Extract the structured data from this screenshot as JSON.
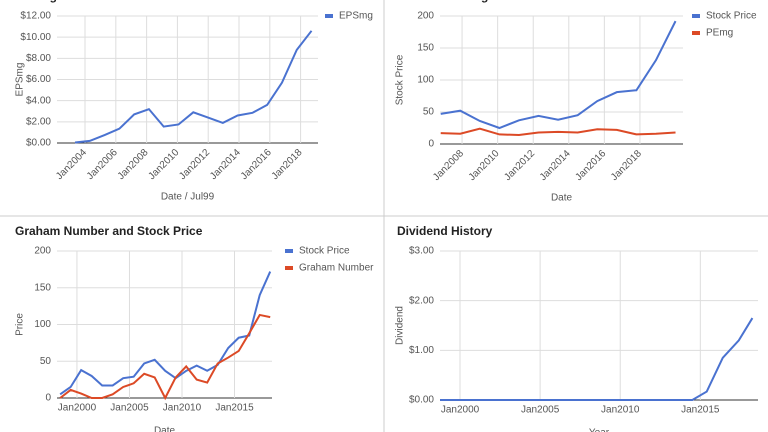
{
  "chart_data": [
    {
      "type": "line",
      "title": "EPSmg",
      "x_label": "Date / Jul99",
      "y_label": "EPSmg",
      "grid": true,
      "legend": "right",
      "rotate_xticks": true,
      "x": [
        2003.35,
        2004.31,
        2005.27,
        2006.23,
        2007.19,
        2008.15,
        2009.11,
        2010.07,
        2011.03,
        2011.99,
        2012.95,
        2013.91,
        2014.87,
        2015.83,
        2016.79,
        2017.75,
        2018.71
      ],
      "series": [
        {
          "name": "EPSmg",
          "color": "#4a72d0",
          "values": [
            0.05,
            0.2,
            0.75,
            1.35,
            2.7,
            3.2,
            1.55,
            1.75,
            2.9,
            2.4,
            1.9,
            2.6,
            2.85,
            3.6,
            5.7,
            8.8,
            10.6
          ]
        }
      ],
      "xlim": [
        2002.18,
        2019.13
      ],
      "ylim": [
        0,
        12
      ],
      "xticks": [
        {
          "value": 2004,
          "label": "Jan2004"
        },
        {
          "value": 2006,
          "label": "Jan2006"
        },
        {
          "value": 2008,
          "label": "Jan2008"
        },
        {
          "value": 2010,
          "label": "Jan2010"
        },
        {
          "value": 2012,
          "label": "Jan2012"
        },
        {
          "value": 2014,
          "label": "Jan2014"
        },
        {
          "value": 2016,
          "label": "Jan2016"
        },
        {
          "value": 2018,
          "label": "Jan2018"
        }
      ],
      "yticks": [
        {
          "value": 0,
          "label": "$0.00"
        },
        {
          "value": 2,
          "label": "$2.00"
        },
        {
          "value": 4,
          "label": "$4.00"
        },
        {
          "value": 6,
          "label": "$6.00"
        },
        {
          "value": 8,
          "label": "$8.00"
        },
        {
          "value": 10,
          "label": "$10.00"
        },
        {
          "value": 12,
          "label": "$12.00"
        }
      ]
    },
    {
      "type": "line",
      "title": "Price and PEmg",
      "x_label": "Date",
      "y_label": "Stock Price",
      "grid": true,
      "legend": "right",
      "rotate_xticks": true,
      "x": [
        2006.8,
        2007.9,
        2009.0,
        2010.1,
        2011.2,
        2012.3,
        2013.4,
        2014.5,
        2015.6,
        2016.7,
        2017.8,
        2018.9,
        2020.0
      ],
      "series": [
        {
          "name": "Stock Price",
          "color": "#4a72d0",
          "values": [
            47,
            52,
            36,
            25,
            37,
            44,
            38,
            45,
            67,
            81,
            84,
            131,
            192
          ]
        },
        {
          "name": "PEmg",
          "color": "#dc4a26",
          "values": [
            17,
            16,
            24,
            15,
            14,
            18,
            19,
            18,
            23,
            22,
            15,
            16,
            18
          ]
        }
      ],
      "xlim": [
        2006.76,
        2020.42
      ],
      "ylim": [
        0,
        200
      ],
      "xticks": [
        {
          "value": 2008,
          "label": "Jan2008"
        },
        {
          "value": 2010,
          "label": "Jan2010"
        },
        {
          "value": 2012,
          "label": "Jan2012"
        },
        {
          "value": 2014,
          "label": "Jan2014"
        },
        {
          "value": 2016,
          "label": "Jan2016"
        },
        {
          "value": 2018,
          "label": "Jan2018"
        }
      ],
      "yticks": [
        0,
        50,
        100,
        150,
        200
      ]
    },
    {
      "type": "line",
      "title": "Graham Number and Stock Price",
      "x_label": "Date",
      "y_label": "Price",
      "grid": true,
      "legend": "right",
      "rotate_xticks": false,
      "x": [
        1998.4,
        1999.4,
        2000.4,
        2001.4,
        2002.4,
        2003.4,
        2004.4,
        2005.4,
        2006.4,
        2007.4,
        2008.4,
        2009.4,
        2010.4,
        2011.4,
        2012.4,
        2013.4,
        2014.4,
        2015.4,
        2016.4,
        2017.4,
        2018.4
      ],
      "series": [
        {
          "name": "Stock Price",
          "color": "#4a72d0",
          "values": [
            5,
            15,
            38,
            30,
            17,
            17,
            27,
            29,
            47,
            52,
            37,
            27,
            37,
            44,
            37,
            45,
            68,
            82,
            85,
            140,
            172
          ]
        },
        {
          "name": "Graham Number",
          "color": "#dc4a26",
          "values": [
            0,
            11,
            6,
            0,
            0,
            5,
            15,
            20,
            33,
            28,
            0,
            28,
            43,
            25,
            21,
            47,
            55,
            64,
            88,
            113,
            110
          ]
        }
      ],
      "xlim": [
        1998.1,
        2018.57
      ],
      "ylim": [
        0,
        200
      ],
      "xticks": [
        {
          "value": 2000,
          "label": "Jan2000"
        },
        {
          "value": 2005,
          "label": "Jan2005"
        },
        {
          "value": 2010,
          "label": "Jan2010"
        },
        {
          "value": 2015,
          "label": "Jan2015"
        }
      ],
      "yticks": [
        0,
        50,
        100,
        150,
        200
      ]
    },
    {
      "type": "line",
      "title": "Dividend History",
      "x_label": "Year",
      "y_label": "Dividend",
      "grid": true,
      "rotate_xticks": false,
      "x": [
        1998.75,
        2014.5,
        2015.4,
        2016.4,
        2017.4,
        2018.25
      ],
      "series": [
        {
          "color": "#4a72d0",
          "values": [
            0,
            0,
            0.17,
            0.85,
            1.2,
            1.65
          ]
        }
      ],
      "xlim": [
        1998.75,
        2018.6
      ],
      "ylim": [
        0,
        3
      ],
      "xticks": [
        {
          "value": 2000,
          "label": "Jan2000"
        },
        {
          "value": 2005,
          "label": "Jan2005"
        },
        {
          "value": 2010,
          "label": "Jan2010"
        },
        {
          "value": 2015,
          "label": "Jan2015"
        }
      ],
      "yticks": [
        {
          "value": 0,
          "label": "$0.00"
        },
        {
          "value": 1,
          "label": "$1.00"
        },
        {
          "value": 2,
          "label": "$2.00"
        },
        {
          "value": 3,
          "label": "$3.00"
        }
      ]
    }
  ]
}
